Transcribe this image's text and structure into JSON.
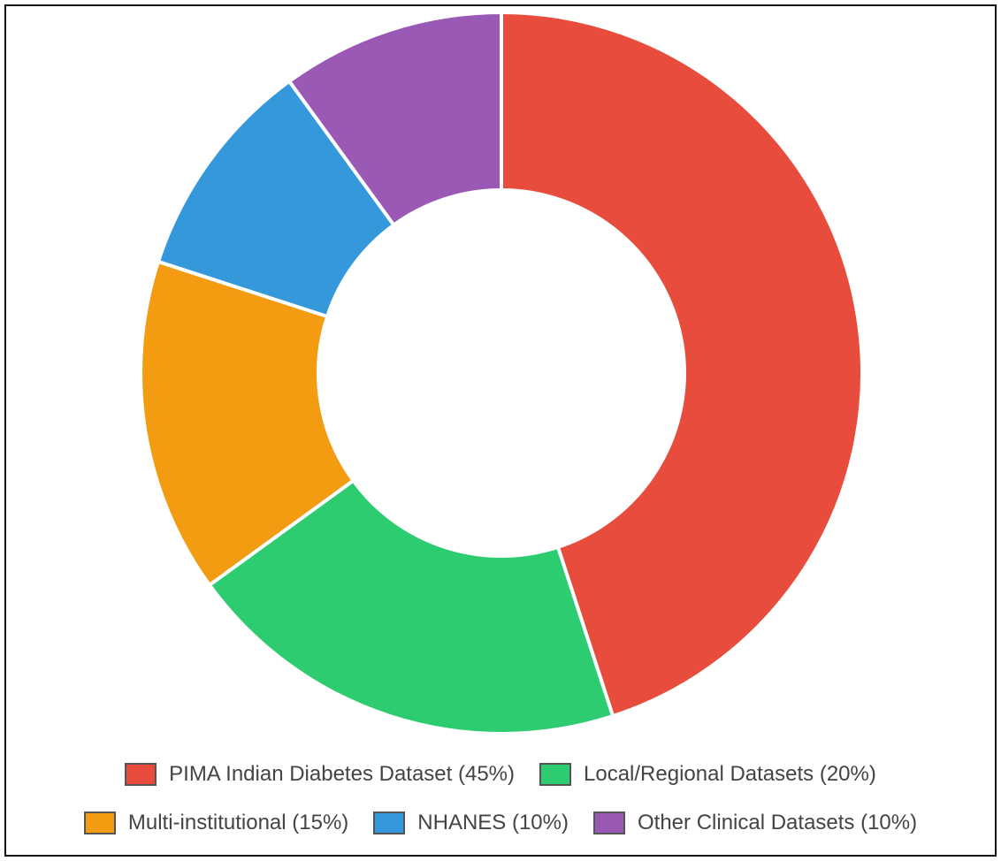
{
  "chart_data": {
    "type": "donut",
    "categories": [
      "PIMA Indian Diabetes Dataset (45%)",
      "Local/Regional Datasets (20%)",
      "Multi-institutional (15%)",
      "NHANES (10%)",
      "Other Clinical Datasets (10%)"
    ],
    "values": [
      45,
      20,
      15,
      10,
      10
    ],
    "colors": [
      "#e74c3c",
      "#2ecc71",
      "#f39c12",
      "#3498db",
      "#9b59b6"
    ]
  }
}
